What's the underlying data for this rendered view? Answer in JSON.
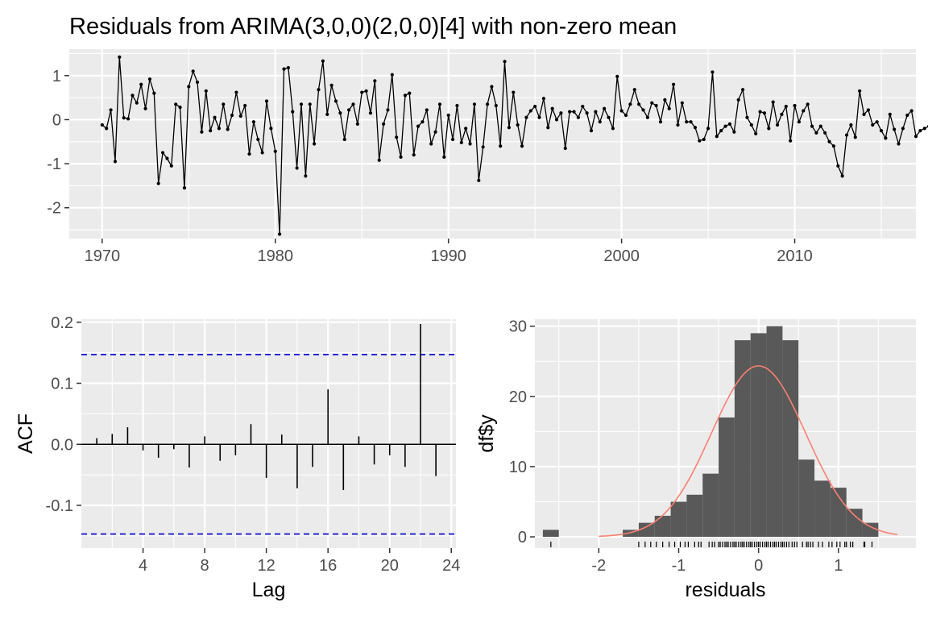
{
  "figure": {
    "title": "Residuals from ARIMA(3,0,0)(2,0,0)[4] with non-zero mean"
  },
  "chart_data": [
    {
      "type": "line",
      "panel": "residuals-time-series",
      "title": "Residuals from ARIMA(3,0,0)(2,0,0)[4] with non-zero mean",
      "xlabel": "",
      "ylabel": "",
      "xlim": [
        1968.1,
        2017.0
      ],
      "ylim": [
        -2.7,
        1.6
      ],
      "x_start": 1970.0,
      "x_step": 0.25,
      "xticks": [
        1970,
        1980,
        1990,
        2000,
        2010
      ],
      "xtick_labels": [
        "1970",
        "1980",
        "1990",
        "2000",
        "2010"
      ],
      "yticks": [
        -2,
        -1,
        0,
        1
      ],
      "ytick_labels": [
        "-2",
        "-1",
        "0",
        "1"
      ],
      "series_color": "#000000",
      "grid": true,
      "values": [
        -0.12,
        -0.2,
        0.22,
        -0.95,
        1.42,
        0.04,
        0.02,
        0.55,
        0.38,
        0.8,
        0.25,
        0.92,
        0.6,
        -1.45,
        -0.75,
        -0.88,
        -1.05,
        0.35,
        0.28,
        -1.55,
        0.75,
        1.1,
        0.85,
        -0.28,
        0.65,
        -0.25,
        0.05,
        -0.2,
        0.35,
        -0.22,
        0.1,
        0.62,
        0.08,
        0.32,
        -0.78,
        -0.05,
        -0.45,
        -0.75,
        0.42,
        -0.2,
        -0.72,
        -2.6,
        1.15,
        1.18,
        0.18,
        -1.1,
        0.35,
        -1.28,
        0.35,
        -0.55,
        0.68,
        1.33,
        0.12,
        0.78,
        0.42,
        0.15,
        -0.45,
        0.22,
        0.35,
        -0.1,
        0.62,
        0.65,
        0.15,
        0.88,
        -0.92,
        -0.1,
        0.22,
        1.02,
        -0.4,
        -0.85,
        0.55,
        0.6,
        -0.8,
        -0.15,
        -0.05,
        0.22,
        -0.55,
        -0.28,
        0.35,
        -0.85,
        0.1,
        -0.45,
        0.32,
        -0.52,
        -0.2,
        -0.55,
        0.35,
        -1.38,
        -0.62,
        0.35,
        0.75,
        0.32,
        -0.6,
        1.32,
        -0.18,
        0.62,
        -0.12,
        -0.6,
        0.05,
        0.2,
        0.3,
        0.05,
        0.48,
        -0.18,
        0.25,
        0.0,
        0.15,
        -0.65,
        0.18,
        0.18,
        0.05,
        0.3,
        0.15,
        -0.25,
        0.18,
        -0.05,
        0.25,
        0.05,
        -0.2,
        0.98,
        0.2,
        0.1,
        0.35,
        0.68,
        0.35,
        0.22,
        0.05,
        0.38,
        0.32,
        -0.05,
        0.45,
        0.25,
        0.8,
        -0.12,
        0.38,
        -0.05,
        -0.05,
        -0.18,
        -0.48,
        -0.45,
        -0.2,
        1.08,
        -0.38,
        -0.25,
        -0.15,
        -0.1,
        -0.28,
        0.45,
        0.68,
        0.05,
        -0.12,
        -0.32,
        0.18,
        0.15,
        -0.2,
        0.4,
        -0.12,
        0.12,
        0.3,
        -0.48,
        0.32,
        -0.05,
        0.2,
        0.35,
        -0.15,
        -0.3,
        -0.15,
        -0.3,
        -0.5,
        -0.6,
        -1.05,
        -1.28,
        -0.35,
        -0.12,
        -0.4,
        0.65,
        0.12,
        0.22,
        -0.12,
        -0.05,
        -0.25,
        -0.42,
        0.12,
        -0.22,
        -0.55,
        -0.2,
        0.1,
        0.2,
        -0.38,
        -0.25,
        -0.2,
        -0.15,
        -0.12,
        -0.05,
        -0.38,
        0.05,
        0.25,
        -0.1,
        0.2,
        0.1
      ]
    },
    {
      "type": "bar",
      "panel": "acf",
      "xlabel": "Lag",
      "ylabel": "ACF",
      "xlim": [
        0.0,
        24.3
      ],
      "ylim": [
        -0.17,
        0.205
      ],
      "lags": [
        1,
        2,
        3,
        4,
        5,
        6,
        7,
        8,
        9,
        10,
        11,
        12,
        13,
        14,
        15,
        16,
        17,
        18,
        19,
        20,
        21,
        22,
        23
      ],
      "values": [
        0.01,
        0.017,
        0.028,
        -0.01,
        -0.022,
        -0.008,
        -0.038,
        0.013,
        -0.027,
        -0.018,
        0.033,
        -0.055,
        0.016,
        -0.072,
        -0.037,
        0.09,
        -0.075,
        0.013,
        -0.033,
        -0.018,
        -0.037,
        0.197,
        -0.052
      ],
      "confidence_bound": 0.147,
      "confidence_color": "#0000cc",
      "xticks": [
        4,
        8,
        12,
        16,
        20,
        24
      ],
      "xtick_labels": [
        "4",
        "8",
        "12",
        "16",
        "20",
        "24"
      ],
      "yticks": [
        -0.1,
        0.0,
        0.1,
        0.2
      ],
      "ytick_labels": [
        "-0.1",
        "0.0",
        "0.1",
        "0.2"
      ],
      "grid": true
    },
    {
      "type": "bar",
      "panel": "residual-histogram",
      "xlabel": "residuals",
      "ylabel": "df$y",
      "xlim": [
        -2.8,
        1.97
      ],
      "ylim": [
        -1.6,
        31.0
      ],
      "bin_width": 0.2,
      "bin_centers": [
        -2.6,
        -2.4,
        -2.2,
        -2.0,
        -1.8,
        -1.6,
        -1.4,
        -1.2,
        -1.0,
        -0.8,
        -0.6,
        -0.4,
        -0.2,
        0.0,
        0.2,
        0.4,
        0.6,
        0.8,
        1.0,
        1.2,
        1.4
      ],
      "counts": [
        1,
        0,
        0,
        0,
        0,
        1,
        2,
        3,
        5,
        6,
        9,
        17,
        28,
        29,
        30,
        28,
        11,
        8,
        7,
        4,
        2
      ],
      "bar_color": "#595959",
      "density_curve": {
        "color": "#fa8072",
        "mean": 0.0,
        "sd": 0.59,
        "count": 180,
        "x_range": [
          -2.0,
          1.75
        ]
      },
      "rug": [
        -2.6,
        -1.5,
        -1.42,
        -1.35,
        -1.28,
        -1.2,
        -1.12,
        -1.05,
        -0.98,
        -0.92,
        -0.88,
        -0.8,
        -0.75,
        -0.72,
        -0.62,
        -0.58,
        -0.55,
        -0.5,
        -0.48,
        -0.45,
        -0.42,
        -0.4,
        -0.38,
        -0.35,
        -0.32,
        -0.3,
        -0.28,
        -0.25,
        -0.22,
        -0.2,
        -0.18,
        -0.15,
        -0.12,
        -0.1,
        -0.08,
        -0.05,
        -0.02,
        0.0,
        0.02,
        0.05,
        0.08,
        0.1,
        0.12,
        0.15,
        0.18,
        0.2,
        0.22,
        0.25,
        0.28,
        0.3,
        0.32,
        0.35,
        0.38,
        0.42,
        0.45,
        0.48,
        0.55,
        0.6,
        0.62,
        0.65,
        0.68,
        0.75,
        0.8,
        0.88,
        0.92,
        0.98,
        1.02,
        1.08,
        1.1,
        1.15,
        1.18,
        1.32,
        1.33,
        1.42
      ],
      "xticks": [
        -2,
        -1,
        0,
        1
      ],
      "xtick_labels": [
        "-2",
        "-1",
        "0",
        "1"
      ],
      "yticks": [
        0,
        10,
        20,
        30
      ],
      "ytick_labels": [
        "0",
        "10",
        "20",
        "30"
      ],
      "grid": true
    }
  ]
}
